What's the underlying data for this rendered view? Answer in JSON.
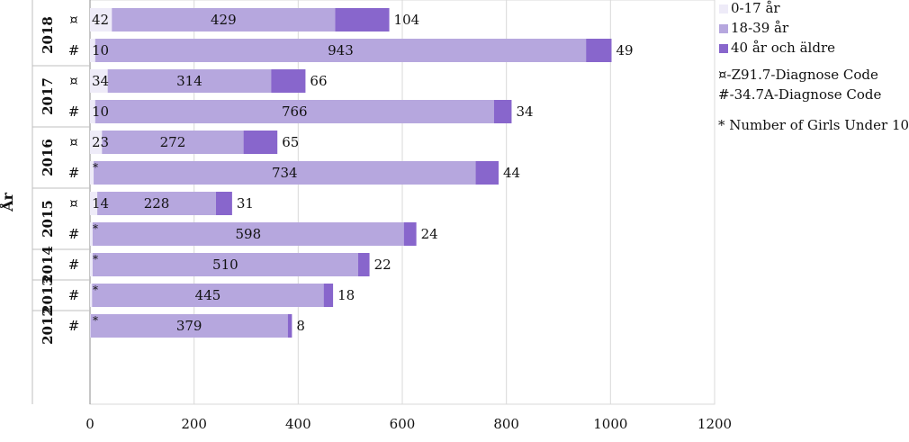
{
  "chart_data": {
    "type": "bar",
    "orientation": "horizontal",
    "stacked": true,
    "ylabel": "År",
    "xlim": [
      0,
      1200
    ],
    "x_ticks": [
      0,
      200,
      400,
      600,
      800,
      1000,
      1200
    ],
    "grid": "vertical",
    "legend_position": "right",
    "series": [
      {
        "name": "0-17 år",
        "color": "#eeebf8"
      },
      {
        "name": "18-39 år",
        "color": "#b6a7de"
      },
      {
        "name": "40 år och äldre",
        "color": "#8866cc"
      }
    ],
    "notes": [
      "¤-Z91.7-Diagnose Code",
      "#-34.7A-Diagnose Code",
      "* Number of Girls Under 10"
    ],
    "groups": [
      {
        "year": "2018",
        "rows": [
          {
            "code": "¤",
            "values": [
              42,
              429,
              104
            ],
            "labels": [
              "42",
              "429",
              "104"
            ]
          },
          {
            "code": "#",
            "values": [
              10,
              943,
              49
            ],
            "labels": [
              "10",
              "943",
              "49"
            ]
          }
        ]
      },
      {
        "year": "2017",
        "rows": [
          {
            "code": "¤",
            "values": [
              34,
              314,
              66
            ],
            "labels": [
              "34",
              "314",
              "66"
            ]
          },
          {
            "code": "#",
            "values": [
              10,
              766,
              34
            ],
            "labels": [
              "10",
              "766",
              "34"
            ]
          }
        ]
      },
      {
        "year": "2016",
        "rows": [
          {
            "code": "¤",
            "values": [
              23,
              272,
              65
            ],
            "labels": [
              "23",
              "272",
              "65"
            ]
          },
          {
            "code": "#",
            "values": [
              7,
              734,
              44
            ],
            "labels": [
              "*",
              "734",
              "44"
            ]
          }
        ]
      },
      {
        "year": "2015",
        "rows": [
          {
            "code": "¤",
            "values": [
              14,
              228,
              31
            ],
            "labels": [
              "14",
              "228",
              "31"
            ]
          },
          {
            "code": "#",
            "values": [
              5,
              598,
              24
            ],
            "labels": [
              "*",
              "598",
              "24"
            ]
          }
        ]
      },
      {
        "year": "2014",
        "rows": [
          {
            "code": "#",
            "values": [
              5,
              510,
              22
            ],
            "labels": [
              "*",
              "510",
              "22"
            ]
          }
        ]
      },
      {
        "year": "2013",
        "rows": [
          {
            "code": "#",
            "values": [
              4,
              445,
              18
            ],
            "labels": [
              "*",
              "445",
              "18"
            ]
          }
        ]
      },
      {
        "year": "2012",
        "rows": [
          {
            "code": "#",
            "values": [
              1,
              379,
              8
            ],
            "labels": [
              "*",
              "379",
              "8"
            ]
          }
        ]
      }
    ]
  }
}
